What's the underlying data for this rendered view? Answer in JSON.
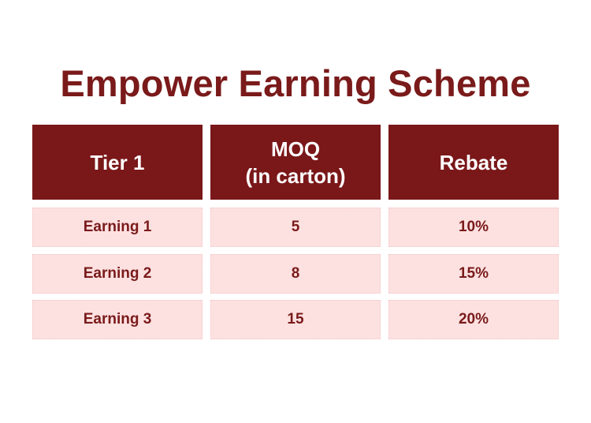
{
  "title": "Empower Earning Scheme",
  "table": {
    "headers": [
      "Tier 1",
      "MOQ\n(in carton)",
      "Rebate"
    ],
    "rows": [
      {
        "tier": "Earning 1",
        "moq": "5",
        "rebate": "10%"
      },
      {
        "tier": "Earning 2",
        "moq": "8",
        "rebate": "15%"
      },
      {
        "tier": "Earning 3",
        "moq": "15",
        "rebate": "20%"
      }
    ]
  },
  "colors": {
    "header_bg": "#7a1719",
    "row_bg": "#fde1e1",
    "text_dark_red": "#7a1a1a"
  }
}
